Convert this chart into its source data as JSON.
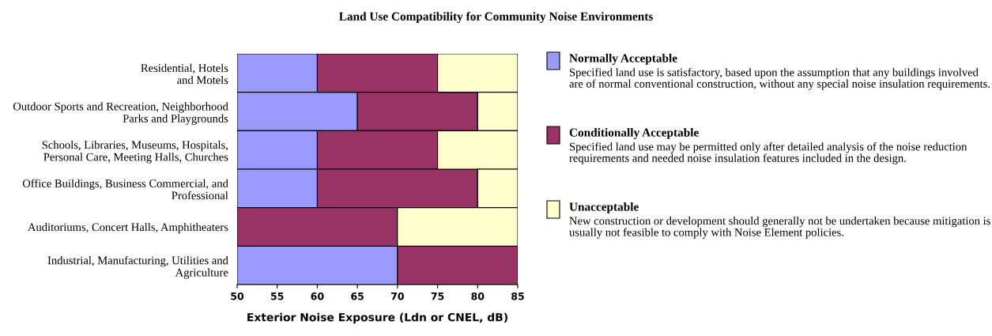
{
  "chart_data": {
    "type": "bar",
    "orientation": "horizontal",
    "title": "Land Use Compatibility for Community Noise Environments",
    "xlabel": "Exterior Noise Exposure (Ldn or CNEL, dB)",
    "categories": [
      "Residential, Hotels\nand Motels",
      "Outdoor Sports and Recreation, Neighborhood\nParks and Playgrounds",
      "Schools, Libraries, Museums, Hospitals,\nPersonal Care, Meeting Halls, Churches",
      "Office Buildings, Business Commercial, and\nProfessional",
      "Auditoriums, Concert Halls, Amphitheaters",
      "Industrial, Manufacturing, Utilities and\nAgriculture"
    ],
    "series": [
      {
        "name": "Normally Acceptable",
        "color": "#9999ff",
        "base": [
          50,
          50,
          50,
          50,
          null,
          50
        ],
        "values": [
          10,
          15,
          10,
          10,
          null,
          20
        ]
      },
      {
        "name": "Conditionally Acceptable",
        "color": "#993366",
        "base": [
          60,
          65,
          60,
          60,
          50,
          70
        ],
        "values": [
          15,
          15,
          15,
          20,
          20,
          15
        ]
      },
      {
        "name": "Unacceptable",
        "color": "#ffffcc",
        "base": [
          75,
          80,
          75,
          80,
          70,
          null
        ],
        "values": [
          10,
          5,
          10,
          5,
          15,
          null
        ]
      }
    ],
    "xlim": [
      50,
      85
    ],
    "xticks": [
      50,
      55,
      60,
      65,
      70,
      75,
      80,
      85
    ],
    "legend": "right",
    "grid": false,
    "annotations": [
      "Specified land use is satisfactory, based upon the assumption that any buildings involved are of normal conventional construction, without any special noise insulation requirements.",
      "Specified land use may be permitted only after detailed analysis of the noise reduction requirements and needed noise insulation features included in the design.",
      "New construction or development should generally not be undertaken because mitigation is usually not feasible to comply with Noise Element policies."
    ]
  }
}
